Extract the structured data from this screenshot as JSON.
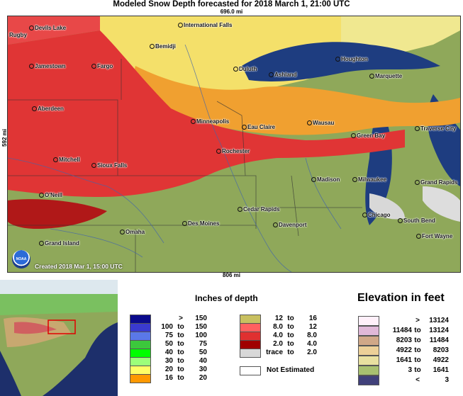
{
  "title": "Modeled Snow Depth forecasted for 2018 March 1, 21:00 UTC",
  "scale": {
    "top": "696.0 mi",
    "bottom": "806 mi",
    "left": "592 mi"
  },
  "created": "Created 2018 Mar 1, 15:00 UTC",
  "logo_text": "NOAA",
  "cities": [
    "Devils Lake",
    "Rugby",
    "International Falls",
    "Bemidji",
    "Jamestown",
    "Fargo",
    "Duluth",
    "Ashland",
    "Houghton",
    "Marquette",
    "Aberdeen",
    "Minneapolis",
    "Eau Claire",
    "Wausau",
    "Traverse City",
    "Green Bay",
    "Rochester",
    "Mitchell",
    "Sioux Falls",
    "O'Neill",
    "Madison",
    "Milwaukee",
    "Grand Rapids",
    "Cedar Rapids",
    "Chicago",
    "South Bend",
    "Des Moines",
    "Davenport",
    "Omaha",
    "Fort Wayne",
    "Grand Island"
  ],
  "snow_legend": {
    "title": "Inches of depth",
    "rows": [
      {
        "color": "#0a0a8c",
        "lo": "",
        "to": ">",
        "hi": "150"
      },
      {
        "color": "#3a3ad0",
        "lo": "100",
        "to": "to",
        "hi": "150"
      },
      {
        "color": "#5a78e8",
        "lo": "75",
        "to": "to",
        "hi": "100"
      },
      {
        "color": "#3cc83c",
        "lo": "50",
        "to": "to",
        "hi": "75"
      },
      {
        "color": "#00ff00",
        "lo": "40",
        "to": "to",
        "hi": "50"
      },
      {
        "color": "#9cff7a",
        "lo": "30",
        "to": "to",
        "hi": "40"
      },
      {
        "color": "#ffff66",
        "lo": "20",
        "to": "to",
        "hi": "30"
      },
      {
        "color": "#ff9900",
        "lo": "16",
        "to": "to",
        "hi": "20"
      },
      {
        "color": "#c8c060",
        "lo": "12",
        "to": "to",
        "hi": "16"
      },
      {
        "color": "#ff6060",
        "lo": "8.0",
        "to": "to",
        "hi": "12"
      },
      {
        "color": "#e03030",
        "lo": "4.0",
        "to": "to",
        "hi": "8.0"
      },
      {
        "color": "#a00000",
        "lo": "2.0",
        "to": "to",
        "hi": "4.0"
      },
      {
        "color": "#d8d8d8",
        "lo": "trace",
        "to": "to",
        "hi": "2.0"
      }
    ],
    "not_estimated": "Not Estimated"
  },
  "elevation_legend": {
    "title": "Elevation in feet",
    "rows": [
      {
        "color": "#fff0fa",
        "lo": "",
        "to": ">",
        "hi": "13124"
      },
      {
        "color": "#e0b8d8",
        "lo": "11484",
        "to": "to",
        "hi": "13124"
      },
      {
        "color": "#d0a888",
        "lo": "8203",
        "to": "to",
        "hi": "11484"
      },
      {
        "color": "#ecd098",
        "lo": "4922",
        "to": "to",
        "hi": "8203"
      },
      {
        "color": "#e8e0a0",
        "lo": "1641",
        "to": "to",
        "hi": "4922"
      },
      {
        "color": "#a8c070",
        "lo": "3",
        "to": "to",
        "hi": "1641"
      },
      {
        "color": "#40407a",
        "lo": "",
        "to": "<",
        "hi": "3"
      }
    ]
  }
}
